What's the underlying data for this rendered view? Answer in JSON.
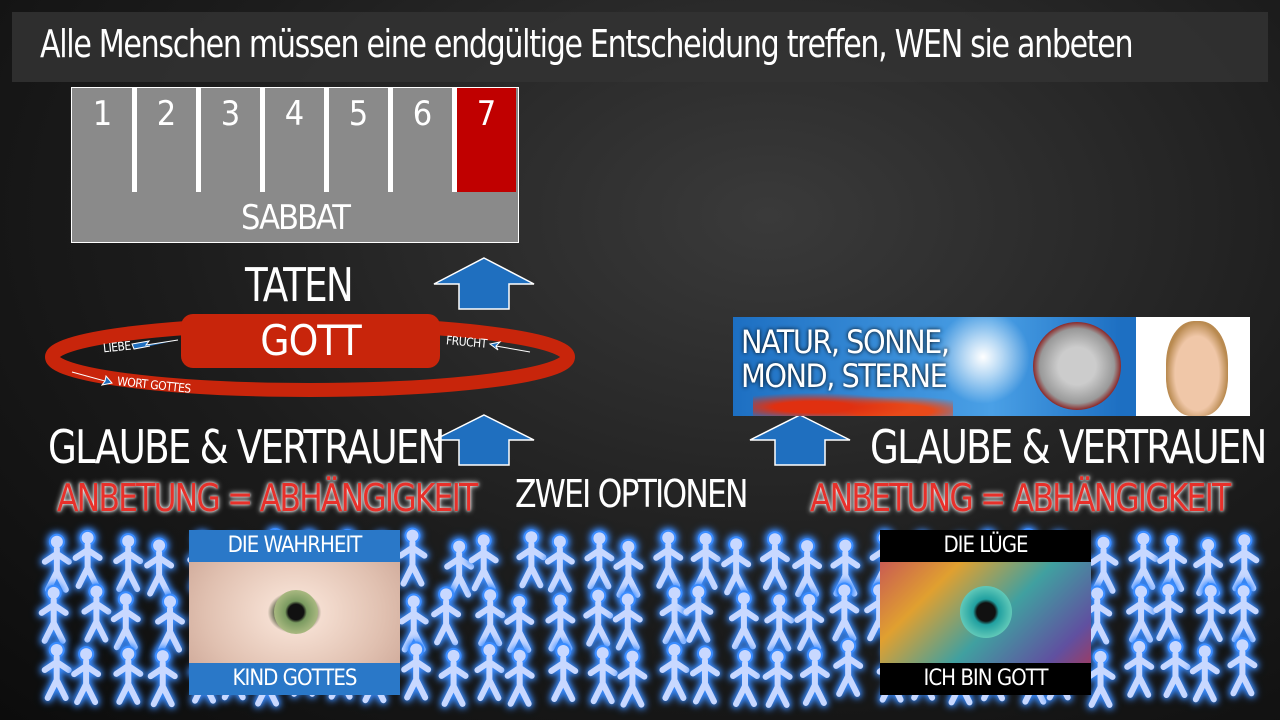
{
  "title": "Alle Menschen müssen eine endgültige Entscheidung treffen, WEN sie anbeten",
  "sabbath": {
    "days": [
      "1",
      "2",
      "3",
      "4",
      "5",
      "6",
      "7"
    ],
    "highlighted_day": "7",
    "label": "SABBAT"
  },
  "taten": "TATEN",
  "cycle": {
    "center": "GOTT",
    "labels": [
      "LIEBE",
      "FRUCHT",
      "WORT GOTTES"
    ]
  },
  "left": {
    "faith": "GLAUBE & VERTRAUEN",
    "worship": "ANBETUNG = ABHÄNGIGKEIT",
    "panel_top": "DIE WAHRHEIT",
    "panel_bottom": "KIND GOTTES"
  },
  "middle": "ZWEI OPTIONEN",
  "right": {
    "image_text_line1": "NATUR, SONNE,",
    "image_text_line2": "MOND, STERNE",
    "faith": "GLAUBE & VERTRAUEN",
    "worship": "ANBETUNG = ABHÄNGIGKEIT",
    "panel_top": "DIE LÜGE",
    "panel_bottom": "ICH BIN GOTT"
  },
  "colors": {
    "red": "#c8250b",
    "day7": "#c00000",
    "arrow": "#1f6fbf",
    "band_blue": "#2a78c8"
  }
}
